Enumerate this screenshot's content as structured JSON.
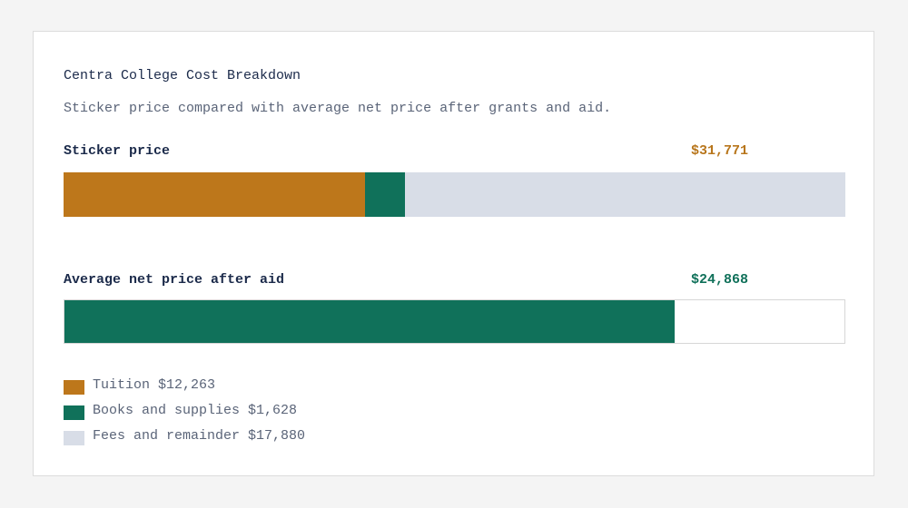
{
  "chart_data": {
    "type": "bar",
    "title": "Centra College Cost Breakdown",
    "subtitle": "Sticker price compared with average net price after grants and aid.",
    "max": 31771,
    "bars": [
      {
        "label": "Sticker price",
        "value_label": "$31,771",
        "value_color": "#b8761c",
        "segments": [
          {
            "name": "Tuition",
            "value": 12263,
            "color": "#bd771b"
          },
          {
            "name": "Books and supplies",
            "value": 1628,
            "color": "#10715a"
          },
          {
            "name": "Fees and remainder",
            "value": 17880,
            "color": "#d8dde7"
          }
        ]
      },
      {
        "label": "Average net price after aid",
        "value_label": "$24,868",
        "value_color": "#10715a",
        "segments": [
          {
            "name": "Net price",
            "value": 24868,
            "color": "#10715a"
          }
        ]
      }
    ],
    "legend": [
      {
        "label": "Tuition $12,263",
        "color": "#bd771b"
      },
      {
        "label": "Books and supplies $1,628",
        "color": "#10715a"
      },
      {
        "label": "Fees and remainder $17,880",
        "color": "#d8dde7"
      }
    ]
  }
}
